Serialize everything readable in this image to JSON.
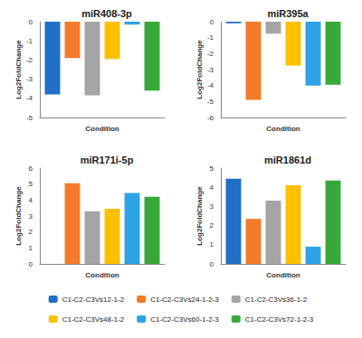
{
  "chart_data": [
    {
      "type": "bar",
      "title": "miR408-3p",
      "x_label": "Condition",
      "y_label": "Log2FoldChange",
      "categories": [
        null
      ],
      "ylim": [
        -5,
        0
      ],
      "yticks": [
        -5,
        -4,
        -3,
        -2,
        -1,
        0
      ],
      "grid": false,
      "legend": "bottom",
      "tick_labels": "y",
      "series": [
        {
          "name": "C1-C2-C3Vs12-1-2",
          "color": "#1f6fc6",
          "values": [
            -3.8
          ]
        },
        {
          "name": "C1-C2-C3Vs24-1-2-3",
          "color": "#f47b2a",
          "values": [
            -1.9
          ]
        },
        {
          "name": "C1-C2-C3Vs36-1-2",
          "color": "#a5a5a5",
          "values": [
            -3.85
          ]
        },
        {
          "name": "C1-C2-C3Vs48-1-2",
          "color": "#ffc000",
          "values": [
            -1.95
          ]
        },
        {
          "name": "C1-C2-C3Vs60-1-2-3",
          "color": "#2ea3e6",
          "values": [
            -0.15
          ]
        },
        {
          "name": "C1-C2-C3Vs72-1-2-3",
          "color": "#38a83b",
          "values": [
            -3.6
          ]
        }
      ]
    },
    {
      "type": "bar",
      "title": "miR395a",
      "x_label": "Condition",
      "y_label": "Log2FoldChange",
      "categories": [
        null
      ],
      "ylim": [
        -6,
        0
      ],
      "yticks": [
        -6,
        -5,
        -4,
        -3,
        -2,
        -1,
        0
      ],
      "grid": false,
      "legend": "bottom",
      "tick_labels": "y",
      "series": [
        {
          "name": "C1-C2-C3Vs12-1-2",
          "color": "#1f6fc6",
          "values": [
            -0.1
          ]
        },
        {
          "name": "C1-C2-C3Vs24-1-2-3",
          "color": "#f47b2a",
          "values": [
            -4.9
          ]
        },
        {
          "name": "C1-C2-C3Vs36-1-2",
          "color": "#a5a5a5",
          "values": [
            -0.75
          ]
        },
        {
          "name": "C1-C2-C3Vs48-1-2",
          "color": "#ffc000",
          "values": [
            -2.75
          ]
        },
        {
          "name": "C1-C2-C3Vs60-1-2-3",
          "color": "#2ea3e6",
          "values": [
            -4.0
          ]
        },
        {
          "name": "C1-C2-C3Vs72-1-2-3",
          "color": "#38a83b",
          "values": [
            -3.95
          ]
        }
      ]
    },
    {
      "type": "bar",
      "title": "miR171i-5p",
      "x_label": "Condition",
      "y_label": "Log2FoldChange",
      "categories": [
        null
      ],
      "ylim": [
        0,
        6
      ],
      "yticks": [
        0,
        1,
        2,
        3,
        4,
        5,
        6
      ],
      "grid": false,
      "legend": "bottom",
      "tick_labels": "y",
      "series": [
        {
          "name": "C1-C2-C3Vs12-1-2",
          "color": "#1f6fc6",
          "values": [
            0
          ]
        },
        {
          "name": "C1-C2-C3Vs24-1-2-3",
          "color": "#f47b2a",
          "values": [
            5.05
          ]
        },
        {
          "name": "C1-C2-C3Vs36-1-2",
          "color": "#a5a5a5",
          "values": [
            3.3
          ]
        },
        {
          "name": "C1-C2-C3Vs48-1-2",
          "color": "#ffc000",
          "values": [
            3.45
          ]
        },
        {
          "name": "C1-C2-C3Vs60-1-2-3",
          "color": "#2ea3e6",
          "values": [
            4.45
          ]
        },
        {
          "name": "C1-C2-C3Vs72-1-2-3",
          "color": "#38a83b",
          "values": [
            4.2
          ]
        }
      ]
    },
    {
      "type": "bar",
      "title": "miR1861d",
      "x_label": "Condition",
      "y_label": "Log2FoldChange",
      "categories": [
        null
      ],
      "ylim": [
        0,
        5
      ],
      "yticks": [
        0,
        1,
        2,
        3,
        4,
        5
      ],
      "grid": false,
      "legend": "bottom",
      "tick_labels": "y",
      "series": [
        {
          "name": "C1-C2-C3Vs12-1-2",
          "color": "#1f6fc6",
          "values": [
            4.45
          ]
        },
        {
          "name": "C1-C2-C3Vs24-1-2-3",
          "color": "#f47b2a",
          "values": [
            2.35
          ]
        },
        {
          "name": "C1-C2-C3Vs36-1-2",
          "color": "#a5a5a5",
          "values": [
            3.3
          ]
        },
        {
          "name": "C1-C2-C3Vs48-1-2",
          "color": "#ffc000",
          "values": [
            4.1
          ]
        },
        {
          "name": "C1-C2-C3Vs60-1-2-3",
          "color": "#2ea3e6",
          "values": [
            0.9
          ]
        },
        {
          "name": "C1-C2-C3Vs72-1-2-3",
          "color": "#38a83b",
          "values": [
            4.35
          ]
        }
      ]
    }
  ]
}
